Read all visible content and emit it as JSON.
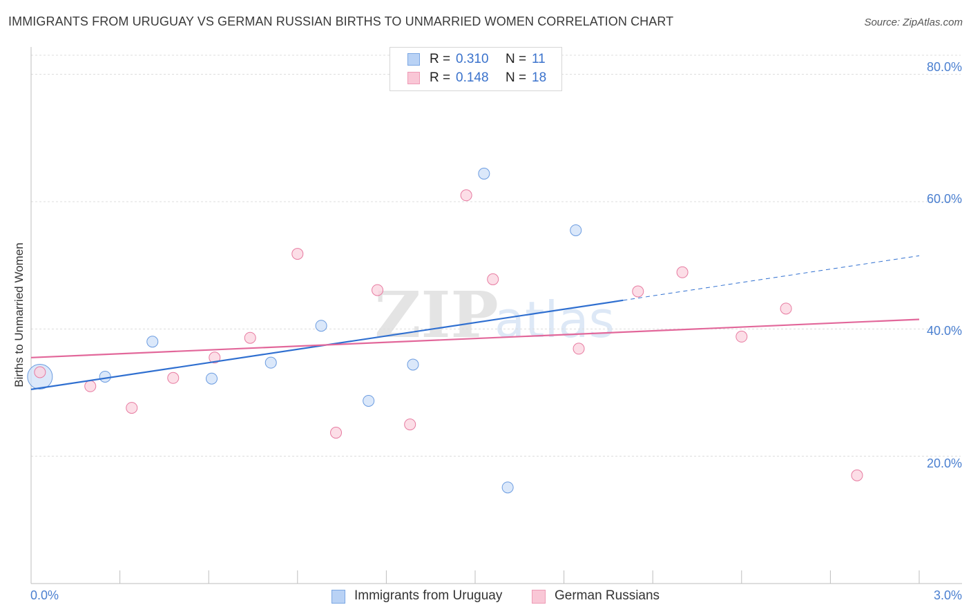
{
  "chart_data": {
    "type": "scatter",
    "title": "IMMIGRANTS FROM URUGUAY VS GERMAN RUSSIAN BIRTHS TO UNMARRIED WOMEN CORRELATION CHART",
    "source": "Source: ZipAtlas.com",
    "xlabel": "",
    "ylabel": "Births to Unmarried Women",
    "xlim": [
      0.0,
      3.0
    ],
    "ylim": [
      0.0,
      83.0
    ],
    "x_tick_labels": [
      {
        "value": 0.0,
        "label": "0.0%",
        "align": "left"
      },
      {
        "value": 3.0,
        "label": "3.0%",
        "align": "right"
      }
    ],
    "y_tick_labels": [
      {
        "value": 20.0,
        "label": "20.0%"
      },
      {
        "value": 40.0,
        "label": "40.0%"
      },
      {
        "value": 60.0,
        "label": "60.0%"
      },
      {
        "value": 80.0,
        "label": "80.0%"
      }
    ],
    "watermark": {
      "bold": "ZIP",
      "light": "atlas"
    },
    "series": [
      {
        "name": "Immigrants from Uruguay",
        "color": "#6a9be0",
        "fill": "#cfe0f8",
        "R": "0.310",
        "N": "11",
        "points": [
          {
            "x": 0.03,
            "y": 32.5,
            "big": true
          },
          {
            "x": 0.25,
            "y": 32.5
          },
          {
            "x": 0.41,
            "y": 38.0
          },
          {
            "x": 0.61,
            "y": 32.2
          },
          {
            "x": 0.81,
            "y": 34.7
          },
          {
            "x": 0.98,
            "y": 40.5
          },
          {
            "x": 1.14,
            "y": 28.7
          },
          {
            "x": 1.29,
            "y": 34.4
          },
          {
            "x": 1.53,
            "y": 64.4
          },
          {
            "x": 1.61,
            "y": 15.1
          },
          {
            "x": 1.84,
            "y": 55.5
          }
        ],
        "trend": {
          "x0": 0.0,
          "y0": 30.5,
          "x1": 2.0,
          "y1": 44.5,
          "dash_to_x": 3.0,
          "dash_to_y": 51.5
        }
      },
      {
        "name": "German Russians",
        "color": "#e77aa0",
        "fill": "#fbd3df",
        "R": "0.148",
        "N": "18",
        "points": [
          {
            "x": 0.03,
            "y": 33.2
          },
          {
            "x": 0.2,
            "y": 31.0
          },
          {
            "x": 0.34,
            "y": 27.6
          },
          {
            "x": 0.48,
            "y": 32.3
          },
          {
            "x": 0.62,
            "y": 35.5
          },
          {
            "x": 0.74,
            "y": 38.6
          },
          {
            "x": 0.9,
            "y": 51.8
          },
          {
            "x": 1.03,
            "y": 23.7
          },
          {
            "x": 1.17,
            "y": 46.1
          },
          {
            "x": 1.28,
            "y": 25.0
          },
          {
            "x": 1.47,
            "y": 61.0
          },
          {
            "x": 1.56,
            "y": 47.8
          },
          {
            "x": 1.85,
            "y": 36.9
          },
          {
            "x": 2.05,
            "y": 45.9
          },
          {
            "x": 2.2,
            "y": 48.9
          },
          {
            "x": 2.4,
            "y": 38.8
          },
          {
            "x": 2.55,
            "y": 43.2
          },
          {
            "x": 2.79,
            "y": 17.0
          }
        ],
        "trend": {
          "x0": 0.0,
          "y0": 35.5,
          "x1": 3.0,
          "y1": 41.5
        }
      }
    ],
    "legend_position": "top-center",
    "labels": {
      "r": "R =",
      "n": "N ="
    }
  }
}
